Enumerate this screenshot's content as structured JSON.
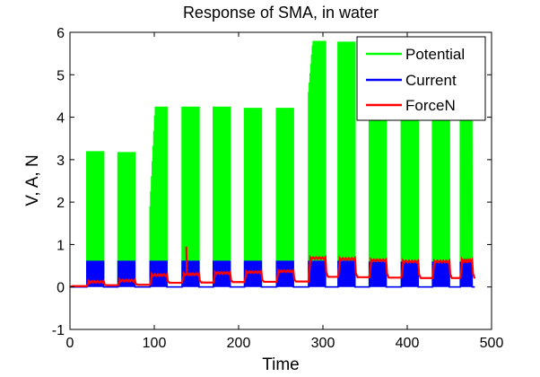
{
  "chart_data": {
    "type": "line",
    "title": "Response of SMA, in water",
    "xlabel": "Time",
    "ylabel": "V, A, N",
    "xlim": [
      0,
      500
    ],
    "ylim": [
      -1,
      6
    ],
    "xticks": [
      "0",
      "100",
      "200",
      "300",
      "400",
      "500"
    ],
    "yticks": [
      "-1",
      "0",
      "1",
      "2",
      "3",
      "4",
      "5",
      "6"
    ],
    "grid": false,
    "legend_position": "top-right",
    "segments": [
      {
        "start": 20,
        "end": 40,
        "potential": 3.2,
        "current": 0.62,
        "force": 0.12
      },
      {
        "start": 57,
        "end": 77,
        "potential": 3.18,
        "current": 0.62,
        "force": 0.15
      },
      {
        "start": 95,
        "end": 115,
        "potential": 4.25,
        "current": 0.62,
        "force": 0.28
      },
      {
        "start": 133,
        "end": 153,
        "potential": 4.25,
        "current": 0.62,
        "force": 0.3
      },
      {
        "start": 170,
        "end": 190,
        "potential": 4.25,
        "current": 0.62,
        "force": 0.33
      },
      {
        "start": 207,
        "end": 227,
        "potential": 4.22,
        "current": 0.62,
        "force": 0.35
      },
      {
        "start": 245,
        "end": 265,
        "potential": 4.22,
        "current": 0.62,
        "force": 0.37
      },
      {
        "start": 283,
        "end": 303,
        "potential": 5.8,
        "current": 0.62,
        "force": 0.68
      },
      {
        "start": 318,
        "end": 338,
        "potential": 5.78,
        "current": 0.62,
        "force": 0.66
      },
      {
        "start": 355,
        "end": 375,
        "potential": 5.8,
        "current": 0.6,
        "force": 0.63
      },
      {
        "start": 393,
        "end": 413,
        "potential": 5.6,
        "current": 0.6,
        "force": 0.6
      },
      {
        "start": 430,
        "end": 450,
        "potential": 5.0,
        "current": 0.6,
        "force": 0.6
      },
      {
        "start": 463,
        "end": 477,
        "potential": 4.5,
        "current": 0.6,
        "force": 0.62
      }
    ],
    "force_spike": {
      "x": 138,
      "y": 0.95
    },
    "series": [
      {
        "name": "Potential",
        "color": "#00ff00"
      },
      {
        "name": "Current",
        "color": "#0000ff"
      },
      {
        "name": "ForceN",
        "color": "#ff0000"
      }
    ]
  }
}
